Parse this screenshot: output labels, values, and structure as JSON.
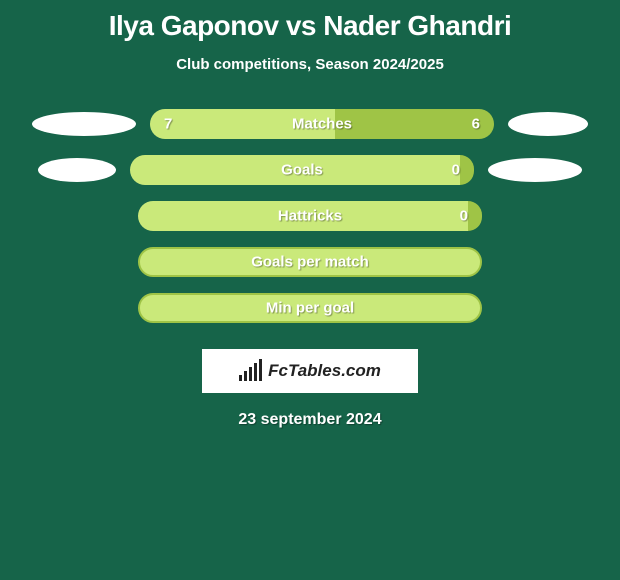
{
  "background_color": "#166449",
  "title_color": "#ffffff",
  "text_color": "#ffffff",
  "title": "Ilya Gaponov vs Nader Ghandri",
  "subtitle": "Club competitions, Season 2024/2025",
  "timestamp": "23 september 2024",
  "logo_text": "FcTables.com",
  "bar_colors": {
    "left": "#cae97a",
    "right": "#9fc446",
    "single_border": "#9fc446"
  },
  "ellipse_color": "#ffffff",
  "rows": [
    {
      "label": "Matches",
      "left_val": "7",
      "right_val": "6",
      "left_pct": 53.8,
      "show_ellipses": true,
      "ellipse_left_w": 104,
      "ellipse_right_w": 80
    },
    {
      "label": "Goals",
      "left_val": "",
      "right_val": "0",
      "left_pct": 96,
      "show_ellipses": true,
      "ellipse_left_w": 78,
      "ellipse_right_w": 94
    },
    {
      "label": "Hattricks",
      "left_val": "",
      "right_val": "0",
      "left_pct": 96,
      "show_ellipses": false
    },
    {
      "label": "Goals per match",
      "left_val": "",
      "right_val": "",
      "left_pct": 100,
      "show_ellipses": false,
      "single": true
    },
    {
      "label": "Min per goal",
      "left_val": "",
      "right_val": "",
      "left_pct": 100,
      "show_ellipses": false,
      "single": true
    }
  ],
  "logo_bars": [
    6,
    10,
    14,
    18,
    22
  ]
}
